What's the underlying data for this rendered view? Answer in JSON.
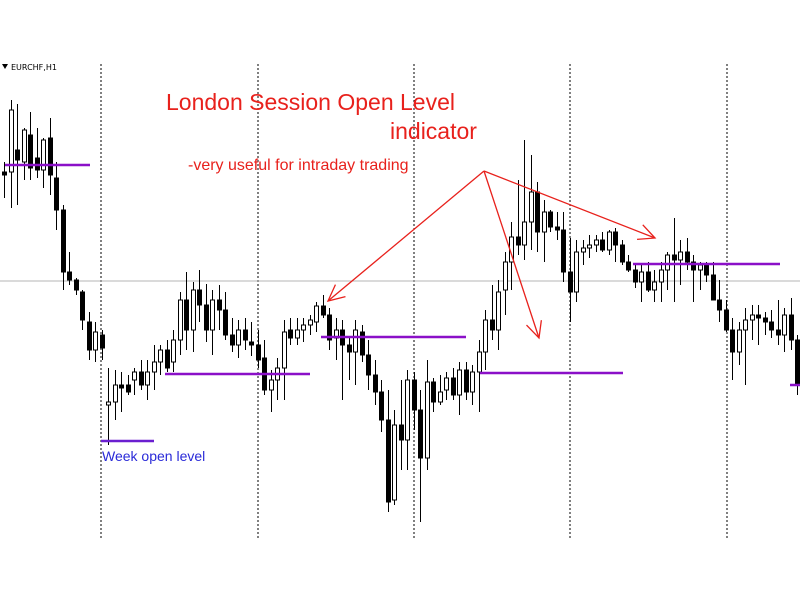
{
  "chart_data": {
    "type": "candlestick",
    "symbol_label": "EURCHF,H1",
    "colors": {
      "candle": "#000000",
      "background": "#ffffff",
      "session_level": "#8b10c8",
      "week_level": "#6a1fd0",
      "annotation": "#e8211c",
      "week_label": "#2a2ad8",
      "separator": "#000000",
      "midline": "#b5b5b5"
    },
    "annotations": {
      "title_line1": "London Session Open Level",
      "title_line2": "indicator",
      "subtitle": "-very useful for intraday trading",
      "week_open_label": "Week open level"
    },
    "candles": [
      [
        172,
        162,
        198,
        175
      ],
      [
        172,
        100,
        208,
        110
      ],
      [
        150,
        104,
        205,
        160
      ],
      [
        162,
        128,
        180,
        130
      ],
      [
        135,
        112,
        180,
        168
      ],
      [
        158,
        128,
        178,
        170
      ],
      [
        170,
        138,
        188,
        140
      ],
      [
        138,
        118,
        195,
        175
      ],
      [
        178,
        162,
        230,
        210
      ],
      [
        210,
        205,
        290,
        272
      ],
      [
        272,
        252,
        285,
        280
      ],
      [
        280,
        278,
        295,
        290
      ],
      [
        292,
        290,
        330,
        320
      ],
      [
        322,
        312,
        360,
        350
      ],
      [
        350,
        322,
        362,
        332
      ],
      [
        335,
        330,
        360,
        348
      ],
      [
        405,
        368,
        445,
        402
      ],
      [
        402,
        370,
        420,
        385
      ],
      [
        385,
        372,
        412,
        388
      ],
      [
        385,
        375,
        395,
        392
      ],
      [
        380,
        368,
        395,
        372
      ],
      [
        372,
        360,
        390,
        385
      ],
      [
        385,
        360,
        400,
        372
      ],
      [
        372,
        345,
        390,
        362
      ],
      [
        362,
        345,
        375,
        350
      ],
      [
        350,
        340,
        372,
        368
      ],
      [
        362,
        330,
        372,
        340
      ],
      [
        340,
        292,
        355,
        300
      ],
      [
        300,
        272,
        350,
        330
      ],
      [
        330,
        282,
        352,
        290
      ],
      [
        290,
        270,
        322,
        305
      ],
      [
        305,
        284,
        342,
        330
      ],
      [
        330,
        290,
        355,
        300
      ],
      [
        300,
        285,
        330,
        310
      ],
      [
        310,
        292,
        340,
        335
      ],
      [
        335,
        318,
        352,
        345
      ],
      [
        345,
        320,
        358,
        330
      ],
      [
        330,
        318,
        350,
        340
      ],
      [
        342,
        322,
        356,
        345
      ],
      [
        345,
        330,
        368,
        360
      ],
      [
        358,
        340,
        395,
        390
      ],
      [
        390,
        370,
        412,
        380
      ],
      [
        380,
        358,
        400,
        368
      ],
      [
        368,
        320,
        400,
        332
      ],
      [
        330,
        318,
        345,
        338
      ],
      [
        338,
        318,
        345,
        330
      ],
      [
        330,
        318,
        342,
        325
      ],
      [
        325,
        315,
        335,
        320
      ],
      [
        322,
        302,
        332,
        306
      ],
      [
        306,
        295,
        318,
        315
      ],
      [
        315,
        308,
        350,
        340
      ],
      [
        338,
        318,
        360,
        330
      ],
      [
        330,
        320,
        400,
        345
      ],
      [
        345,
        338,
        380,
        352
      ],
      [
        352,
        320,
        385,
        330
      ],
      [
        332,
        325,
        362,
        355
      ],
      [
        355,
        340,
        390,
        375
      ],
      [
        375,
        360,
        405,
        392
      ],
      [
        392,
        380,
        432,
        420
      ],
      [
        420,
        390,
        512,
        502
      ],
      [
        500,
        410,
        505,
        425
      ],
      [
        425,
        380,
        470,
        440
      ],
      [
        440,
        370,
        470,
        380
      ],
      [
        380,
        372,
        430,
        410
      ],
      [
        410,
        390,
        522,
        458
      ],
      [
        458,
        360,
        470,
        382
      ],
      [
        382,
        378,
        412,
        402
      ],
      [
        402,
        375,
        405,
        392
      ],
      [
        390,
        372,
        400,
        378
      ],
      [
        378,
        368,
        400,
        395
      ],
      [
        395,
        362,
        415,
        370
      ],
      [
        370,
        362,
        400,
        392
      ],
      [
        392,
        365,
        405,
        372
      ],
      [
        372,
        340,
        412,
        352
      ],
      [
        352,
        310,
        370,
        320
      ],
      [
        320,
        285,
        340,
        330
      ],
      [
        330,
        280,
        350,
        292
      ],
      [
        290,
        252,
        315,
        262
      ],
      [
        262,
        222,
        290,
        237
      ],
      [
        237,
        180,
        255,
        245
      ],
      [
        245,
        140,
        260,
        222
      ],
      [
        222,
        155,
        250,
        192
      ],
      [
        192,
        182,
        252,
        232
      ],
      [
        232,
        200,
        262,
        212
      ],
      [
        212,
        210,
        232,
        227
      ],
      [
        227,
        212,
        240,
        230
      ],
      [
        230,
        212,
        282,
        272
      ],
      [
        272,
        238,
        322,
        292
      ],
      [
        292,
        240,
        302,
        252
      ],
      [
        252,
        240,
        265,
        248
      ],
      [
        248,
        235,
        258,
        245
      ],
      [
        245,
        235,
        252,
        240
      ],
      [
        240,
        232,
        252,
        250
      ],
      [
        250,
        230,
        255,
        232
      ],
      [
        232,
        228,
        262,
        245
      ],
      [
        245,
        240,
        265,
        262
      ],
      [
        262,
        255,
        272,
        270
      ],
      [
        270,
        265,
        288,
        282
      ],
      [
        282,
        265,
        302,
        272
      ],
      [
        272,
        262,
        292,
        290
      ],
      [
        290,
        270,
        302,
        282
      ],
      [
        282,
        262,
        302,
        270
      ],
      [
        270,
        252,
        290,
        255
      ],
      [
        255,
        218,
        302,
        260
      ],
      [
        260,
        240,
        285,
        252
      ],
      [
        252,
        238,
        270,
        262
      ],
      [
        262,
        255,
        302,
        270
      ],
      [
        270,
        262,
        290,
        265
      ],
      [
        265,
        262,
        282,
        275
      ],
      [
        275,
        262,
        292,
        300
      ],
      [
        300,
        280,
        322,
        310
      ],
      [
        310,
        300,
        332,
        330
      ],
      [
        330,
        318,
        380,
        352
      ],
      [
        352,
        322,
        365,
        330
      ],
      [
        330,
        308,
        385,
        320
      ],
      [
        320,
        305,
        340,
        315
      ],
      [
        315,
        305,
        345,
        318
      ],
      [
        318,
        312,
        335,
        322
      ],
      [
        322,
        310,
        338,
        330
      ],
      [
        330,
        300,
        345,
        335
      ],
      [
        335,
        308,
        352,
        315
      ],
      [
        315,
        298,
        350,
        340
      ],
      [
        340,
        335,
        395,
        385
      ]
    ]
  }
}
